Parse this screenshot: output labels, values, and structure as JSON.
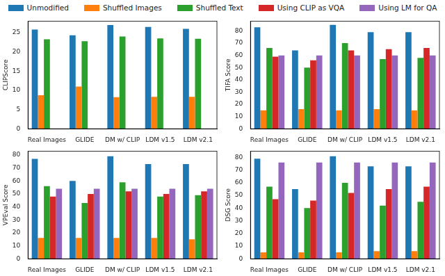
{
  "chart_data": [
    {
      "type": "bar",
      "y_label": "CLIPScore",
      "legend": "top",
      "grid": false,
      "categories": [
        "Real Images",
        "GLIDE",
        "DM w/ CLIP",
        "LDM v1.5",
        "LDM v2.1"
      ],
      "ylim": [
        0,
        28
      ],
      "yticks": [
        0,
        5,
        10,
        15,
        20,
        25
      ],
      "series": [
        {
          "name": "Unmodified",
          "color": "#1f77b4",
          "values": [
            25.8,
            24.3,
            27,
            26.5,
            26
          ]
        },
        {
          "name": "Shuffled Images",
          "color": "#ff7f0e",
          "values": [
            8.7,
            11,
            8.2,
            8.3,
            8.3
          ]
        },
        {
          "name": "Shuffled Text",
          "color": "#2ca02c",
          "values": [
            23.3,
            22.8,
            24,
            23.5,
            23.4
          ]
        },
        {
          "name": "Using CLIP as VQA",
          "color": "#d62728",
          "values": [
            null,
            null,
            null,
            null,
            null
          ]
        },
        {
          "name": "Using LM for QA",
          "color": "#9467bd",
          "values": [
            null,
            null,
            null,
            null,
            null
          ]
        }
      ]
    },
    {
      "type": "bar",
      "y_label": "TIFA Score",
      "grid": false,
      "categories": [
        "Real Images",
        "GLIDE",
        "DM w/ CLIP",
        "LDM v1.5",
        "LDM v2.1"
      ],
      "ylim": [
        0,
        88
      ],
      "yticks": [
        0,
        10,
        20,
        30,
        40,
        50,
        60,
        70,
        80
      ],
      "series": [
        {
          "name": "Unmodified",
          "color": "#1f77b4",
          "values": [
            83,
            64,
            85,
            79,
            79
          ]
        },
        {
          "name": "Shuffled Images",
          "color": "#ff7f0e",
          "values": [
            15,
            16,
            15,
            16,
            15
          ]
        },
        {
          "name": "Shuffled Text",
          "color": "#2ca02c",
          "values": [
            66,
            50,
            70,
            57,
            58
          ]
        },
        {
          "name": "Using CLIP as VQA",
          "color": "#d62728",
          "values": [
            59,
            56,
            64,
            65,
            66
          ]
        },
        {
          "name": "Using LM for QA",
          "color": "#9467bd",
          "values": [
            60,
            60,
            60,
            60,
            60
          ]
        }
      ]
    },
    {
      "type": "bar",
      "y_label": "VPEval Score",
      "grid": false,
      "categories": [
        "Real Images",
        "GLIDE",
        "DM w/ CLIP",
        "LDM v1.5",
        "LDM v2.1"
      ],
      "ylim": [
        0,
        83
      ],
      "yticks": [
        0,
        10,
        20,
        30,
        40,
        50,
        60,
        70,
        80
      ],
      "series": [
        {
          "name": "Unmodified",
          "color": "#1f77b4",
          "values": [
            77,
            60,
            79,
            73,
            73
          ]
        },
        {
          "name": "Shuffled Images",
          "color": "#ff7f0e",
          "values": [
            16,
            16,
            16,
            16,
            15
          ]
        },
        {
          "name": "Shuffled Text",
          "color": "#2ca02c",
          "values": [
            56,
            43,
            59,
            48,
            49
          ]
        },
        {
          "name": "Using CLIP as VQA",
          "color": "#d62728",
          "values": [
            48,
            50,
            52,
            50,
            52
          ]
        },
        {
          "name": "Using LM for QA",
          "color": "#9467bd",
          "values": [
            54,
            54,
            54,
            54,
            54
          ]
        }
      ]
    },
    {
      "type": "bar",
      "y_label": "DSG Score",
      "grid": false,
      "categories": [
        "Real Images",
        "GLIDE",
        "DM w/ CLIP",
        "LDM v1.5",
        "LDM v2.1"
      ],
      "ylim": [
        0,
        85
      ],
      "yticks": [
        0,
        10,
        20,
        30,
        40,
        50,
        60,
        70,
        80
      ],
      "series": [
        {
          "name": "Unmodified",
          "color": "#1f77b4",
          "values": [
            79,
            55,
            81,
            73,
            73
          ]
        },
        {
          "name": "Shuffled Images",
          "color": "#ff7f0e",
          "values": [
            5,
            5,
            5,
            6,
            6
          ]
        },
        {
          "name": "Shuffled Text",
          "color": "#2ca02c",
          "values": [
            57,
            40,
            60,
            42,
            45
          ]
        },
        {
          "name": "Using CLIP as VQA",
          "color": "#d62728",
          "values": [
            47,
            46,
            52,
            55,
            57
          ]
        },
        {
          "name": "Using LM for QA",
          "color": "#9467bd",
          "values": [
            76,
            76,
            76,
            76,
            76
          ]
        }
      ]
    }
  ]
}
